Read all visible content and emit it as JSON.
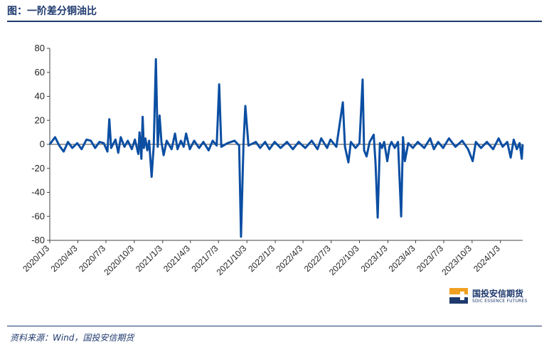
{
  "header": {
    "title": "图：一阶差分铜油比"
  },
  "footer": {
    "source": "资料来源：Wind，国投安信期货"
  },
  "logo": {
    "name_cn": "国投安信期货",
    "name_en": "SDIC ESSENCE FUTURES",
    "accent": "#f0a020",
    "brand": "#1f3a6e"
  },
  "chart_data": {
    "type": "line",
    "title": "",
    "xlabel": "",
    "ylabel": "",
    "ylim": [
      -80,
      80
    ],
    "yticks": [
      80,
      60,
      40,
      20,
      0,
      -20,
      -40,
      -60,
      -80
    ],
    "xticks": [
      "2020/1/3",
      "2020/4/3",
      "2020/7/3",
      "2020/10/3",
      "2021/1/3",
      "2021/4/3",
      "2021/7/3",
      "2021/10/3",
      "2022/1/3",
      "2022/4/3",
      "2022/7/3",
      "2022/10/3",
      "2023/1/3",
      "2023/4/3",
      "2023/7/3",
      "2023/10/3",
      "2024/1/3"
    ],
    "x_range": [
      "2020/1/3",
      "2024/3/15"
    ],
    "grid": false,
    "color": "#0b4ea2",
    "series": [
      {
        "values": [
          [
            "2020/1/3",
            0
          ],
          [
            "2020/1/20",
            6
          ],
          [
            "2020/2/3",
            -1
          ],
          [
            "2020/2/17",
            -6
          ],
          [
            "2020/3/2",
            2
          ],
          [
            "2020/3/16",
            -3
          ],
          [
            "2020/4/1",
            1
          ],
          [
            "2020/4/15",
            -4
          ],
          [
            "2020/5/1",
            4
          ],
          [
            "2020/5/15",
            3
          ],
          [
            "2020/5/29",
            -3
          ],
          [
            "2020/6/12",
            2
          ],
          [
            "2020/6/26",
            1
          ],
          [
            "2020/7/8",
            -6
          ],
          [
            "2020/7/14",
            21
          ],
          [
            "2020/7/20",
            -3
          ],
          [
            "2020/8/3",
            4
          ],
          [
            "2020/8/12",
            -7
          ],
          [
            "2020/8/20",
            6
          ],
          [
            "2020/9/1",
            -2
          ],
          [
            "2020/9/12",
            3
          ],
          [
            "2020/9/25",
            -4
          ],
          [
            "2020/10/5",
            4
          ],
          [
            "2020/10/16",
            -8
          ],
          [
            "2020/10/20",
            10
          ],
          [
            "2020/10/26",
            -12
          ],
          [
            "2020/10/30",
            23
          ],
          [
            "2020/11/3",
            -3
          ],
          [
            "2020/11/8",
            5
          ],
          [
            "2020/11/14",
            -5
          ],
          [
            "2020/11/20",
            3
          ],
          [
            "2020/11/28",
            -27
          ],
          [
            "2020/12/5",
            -1
          ],
          [
            "2020/12/12",
            71
          ],
          [
            "2020/12/18",
            -2
          ],
          [
            "2020/12/24",
            24
          ],
          [
            "2020/12/30",
            2
          ],
          [
            "2021/1/6",
            -9
          ],
          [
            "2021/1/16",
            3
          ],
          [
            "2021/2/1",
            -4
          ],
          [
            "2021/2/12",
            9
          ],
          [
            "2021/2/20",
            -4
          ],
          [
            "2021/3/3",
            3
          ],
          [
            "2021/3/12",
            -2
          ],
          [
            "2021/3/20",
            9
          ],
          [
            "2021/4/1",
            -4
          ],
          [
            "2021/4/15",
            3
          ],
          [
            "2021/5/1",
            -3
          ],
          [
            "2021/5/15",
            2
          ],
          [
            "2021/6/1",
            -5
          ],
          [
            "2021/6/14",
            3
          ],
          [
            "2021/6/27",
            -1
          ],
          [
            "2021/7/5",
            50
          ],
          [
            "2021/7/12",
            -2
          ],
          [
            "2021/8/1",
            1
          ],
          [
            "2021/8/24",
            3
          ],
          [
            "2021/9/8",
            -1
          ],
          [
            "2021/9/14",
            -77
          ],
          [
            "2021/9/22",
            0
          ],
          [
            "2021/9/28",
            32
          ],
          [
            "2021/10/8",
            -1
          ],
          [
            "2021/11/1",
            2
          ],
          [
            "2021/11/15",
            -3
          ],
          [
            "2021/12/1",
            2
          ],
          [
            "2021/12/15",
            -4
          ],
          [
            "2022/1/1",
            2
          ],
          [
            "2022/1/20",
            -3
          ],
          [
            "2022/2/10",
            2
          ],
          [
            "2022/3/1",
            -4
          ],
          [
            "2022/3/20",
            2
          ],
          [
            "2022/4/10",
            -3
          ],
          [
            "2022/5/1",
            3
          ],
          [
            "2022/5/20",
            -4
          ],
          [
            "2022/6/1",
            5
          ],
          [
            "2022/6/20",
            -3
          ],
          [
            "2022/7/1",
            4
          ],
          [
            "2022/7/20",
            -2
          ],
          [
            "2022/8/10",
            35
          ],
          [
            "2022/8/17",
            -2
          ],
          [
            "2022/8/28",
            -15
          ],
          [
            "2022/9/5",
            2
          ],
          [
            "2022/9/20",
            -3
          ],
          [
            "2022/10/3",
            1
          ],
          [
            "2022/10/13",
            54
          ],
          [
            "2022/10/18",
            -5
          ],
          [
            "2022/10/26",
            -10
          ],
          [
            "2022/11/5",
            2
          ],
          [
            "2022/11/18",
            8
          ],
          [
            "2022/11/24",
            -16
          ],
          [
            "2022/12/1",
            -61
          ],
          [
            "2022/12/8",
            1
          ],
          [
            "2022/12/15",
            -3
          ],
          [
            "2022/12/22",
            2
          ],
          [
            "2023/1/1",
            -14
          ],
          [
            "2023/1/8",
            -2
          ],
          [
            "2023/1/15",
            2
          ],
          [
            "2023/1/25",
            -3
          ],
          [
            "2023/2/5",
            2
          ],
          [
            "2023/2/15",
            -60
          ],
          [
            "2023/2/21",
            6
          ],
          [
            "2023/2/27",
            -14
          ],
          [
            "2023/3/10",
            1
          ],
          [
            "2023/3/25",
            -3
          ],
          [
            "2023/4/10",
            2
          ],
          [
            "2023/5/1",
            -3
          ],
          [
            "2023/5/20",
            5
          ],
          [
            "2023/6/1",
            -4
          ],
          [
            "2023/6/15",
            2
          ],
          [
            "2023/7/1",
            -3
          ],
          [
            "2023/7/20",
            5
          ],
          [
            "2023/8/10",
            -2
          ],
          [
            "2023/9/1",
            3
          ],
          [
            "2023/9/20",
            -4
          ],
          [
            "2023/10/5",
            -14
          ],
          [
            "2023/10/15",
            2
          ],
          [
            "2023/11/1",
            -3
          ],
          [
            "2023/11/20",
            2
          ],
          [
            "2023/12/10",
            -4
          ],
          [
            "2023/12/28",
            5
          ],
          [
            "2024/1/10",
            -2
          ],
          [
            "2024/1/25",
            2
          ],
          [
            "2024/2/5",
            -11
          ],
          [
            "2024/2/15",
            4
          ],
          [
            "2024/2/25",
            -4
          ],
          [
            "2024/3/5",
            1
          ],
          [
            "2024/3/12",
            -12
          ],
          [
            "2024/3/15",
            0
          ]
        ]
      }
    ]
  }
}
